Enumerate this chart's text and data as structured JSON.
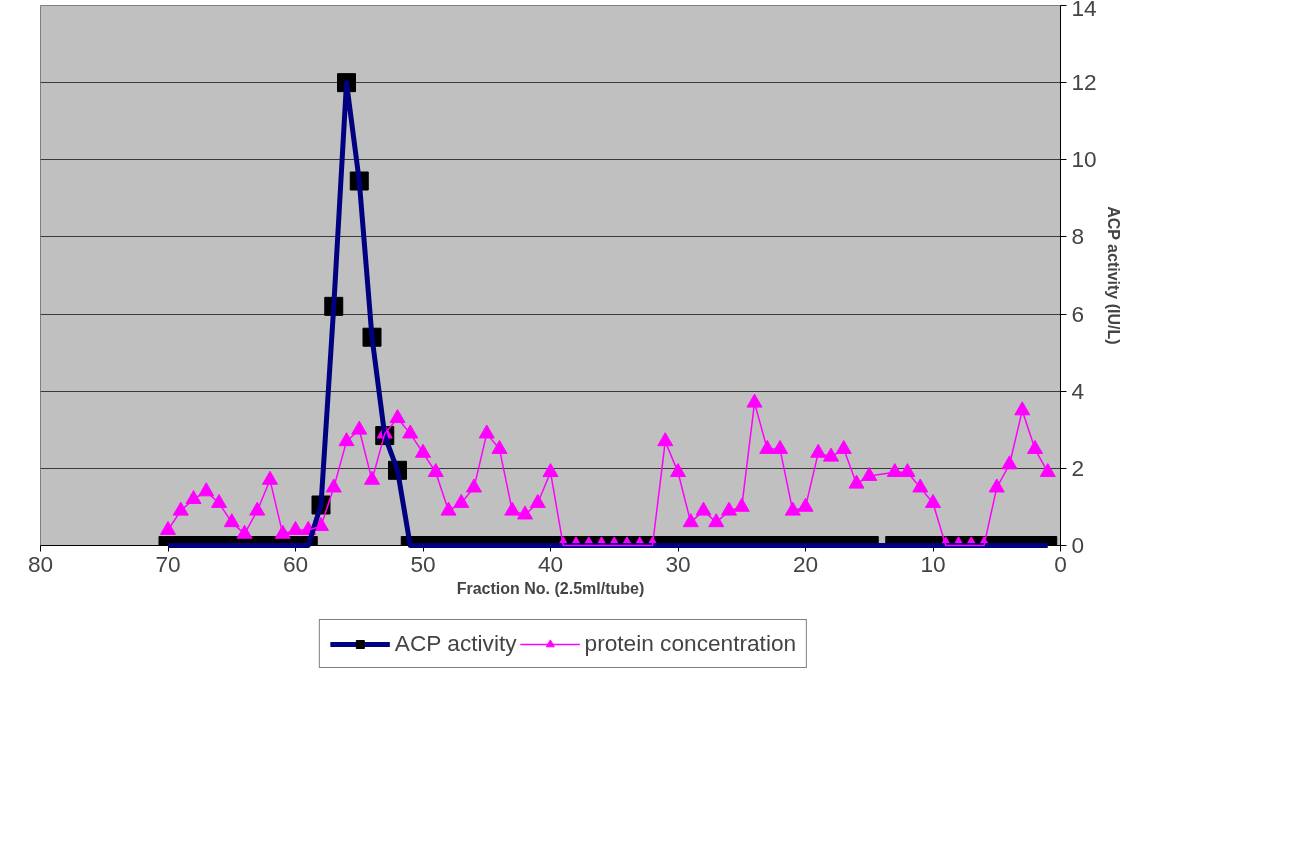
{
  "chart_data": {
    "type": "line",
    "xlabel": "Fraction No. (2.5ml/tube)",
    "ylabel": "ACP activity (IU/L)",
    "x": [
      1,
      2,
      3,
      4,
      5,
      6,
      7,
      8,
      9,
      10,
      11,
      12,
      13,
      14,
      15,
      16,
      17,
      18,
      19,
      20,
      21,
      22,
      23,
      24,
      25,
      26,
      27,
      28,
      29,
      30,
      31,
      32,
      33,
      34,
      35,
      36,
      37,
      38,
      39,
      40,
      41,
      42,
      43,
      44,
      45,
      46,
      47,
      48,
      49,
      50,
      51,
      52,
      53,
      54,
      55,
      56,
      57,
      58,
      59,
      60,
      61,
      62,
      63,
      64,
      65,
      66,
      67,
      68,
      69,
      70
    ],
    "series": [
      {
        "name": "ACP activity",
        "color": "#000080",
        "marker": "square",
        "values": [
          0,
          0,
          0,
          0,
          0,
          0,
          0,
          0,
          0,
          0,
          0,
          0,
          0,
          null,
          0,
          0,
          0,
          0,
          0,
          0,
          0,
          0,
          0,
          0,
          0,
          0,
          0,
          0,
          0,
          0,
          0,
          0,
          0,
          0,
          0,
          0,
          0,
          0,
          0,
          0,
          0,
          0,
          0,
          0,
          0,
          0,
          0,
          0,
          0,
          0,
          0,
          1.95,
          2.85,
          5.4,
          9.45,
          12.0,
          6.2,
          1.05,
          0,
          0,
          0,
          0,
          0,
          0,
          0,
          0,
          0,
          0,
          0,
          0
        ]
      },
      {
        "name": "protein concentration",
        "color": "#ff00ff",
        "marker": "triangle",
        "values": [
          1.9,
          2.5,
          3.5,
          2.1,
          1.5,
          0,
          0,
          0,
          0,
          1.1,
          1.5,
          1.9,
          1.9,
          null,
          1.8,
          1.6,
          2.5,
          2.3,
          2.4,
          1.0,
          0.9,
          2.5,
          2.5,
          3.7,
          1.0,
          0.9,
          0.6,
          0.9,
          0.6,
          1.9,
          2.7,
          0,
          0,
          0,
          0,
          0,
          0,
          0,
          0,
          1.9,
          1.1,
          0.8,
          0.9,
          2.5,
          2.9,
          1.5,
          1.1,
          0.9,
          1.9,
          2.4,
          2.9,
          3.3,
          2.9,
          1.7,
          3.0,
          2.7,
          1.5,
          0.5,
          0.4,
          0.4,
          0.3,
          1.7,
          0.9,
          0.3,
          0.6,
          1.1,
          1.4,
          1.2,
          0.9,
          0.4
        ]
      }
    ],
    "xlim": [
      80,
      0
    ],
    "xticks": [
      80,
      70,
      60,
      50,
      40,
      30,
      20,
      10,
      0
    ],
    "ylim": [
      0,
      14
    ],
    "yticks": [
      0,
      2,
      4,
      6,
      8,
      10,
      12,
      14
    ],
    "grid": "y",
    "legend": "bottom"
  }
}
